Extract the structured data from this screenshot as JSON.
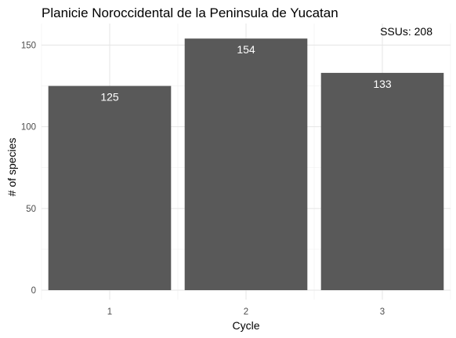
{
  "chart_data": {
    "type": "bar",
    "title": "Planicie Noroccidental de la  Peninsula de Yucatan",
    "xlabel": "Cycle",
    "ylabel": "# of species",
    "categories": [
      "1",
      "2",
      "3"
    ],
    "values": [
      125,
      154,
      133
    ],
    "data_labels": [
      "125",
      "154",
      "133"
    ],
    "ylim": [
      0,
      160
    ],
    "yticks": [
      0,
      50,
      100,
      150
    ],
    "ytick_labels": [
      "0",
      "50",
      "100",
      "150"
    ],
    "annotation": "SSUs: 208",
    "grid": true,
    "bar_color": "#595959",
    "label_color": "#ffffff"
  }
}
